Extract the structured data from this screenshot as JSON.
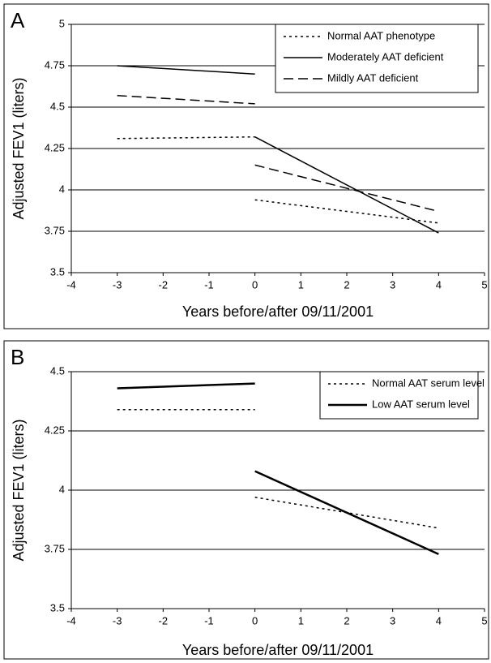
{
  "chart_data": [
    {
      "type": "line",
      "label": "A",
      "xlabel": "Years before/after 09/11/2001",
      "ylabel": "Adjusted FEV1 (liters)",
      "x": [
        -3,
        0,
        null,
        0,
        4
      ],
      "series": [
        {
          "name": "Normal AAT phenotype",
          "color": "#000000",
          "dash": "dotted",
          "width": 1.5,
          "values": [
            4.31,
            4.32,
            null,
            3.94,
            3.8
          ]
        },
        {
          "name": "Moderately AAT deficient",
          "color": "#000000",
          "dash": "solid",
          "width": 1.5,
          "values": [
            4.75,
            4.7,
            null,
            4.32,
            3.74
          ]
        },
        {
          "name": "Mildly AAT deficient",
          "color": "#000000",
          "dash": "dashed",
          "width": 1.5,
          "values": [
            4.57,
            4.52,
            null,
            4.15,
            3.87
          ]
        }
      ],
      "xlim": [
        -4,
        5
      ],
      "xticks": [
        -4,
        -3,
        -2,
        -1,
        0,
        1,
        2,
        3,
        4,
        5
      ],
      "ylim": [
        3.5,
        5
      ],
      "yticks": [
        3.5,
        3.75,
        4,
        4.25,
        4.5,
        4.75,
        5
      ],
      "grid": true,
      "legend": "upper right"
    },
    {
      "type": "line",
      "label": "B",
      "xlabel": "Years before/after 09/11/2001",
      "ylabel": "Adjusted FEV1 (liters)",
      "x": [
        -3,
        0,
        null,
        0,
        4
      ],
      "series": [
        {
          "name": "Normal AAT serum level",
          "color": "#000000",
          "dash": "dotted",
          "width": 1.5,
          "values": [
            4.34,
            4.34,
            null,
            3.97,
            3.84
          ]
        },
        {
          "name": "Low AAT serum level",
          "color": "#000000",
          "dash": "solid",
          "width": 2.5,
          "values": [
            4.43,
            4.45,
            null,
            4.08,
            3.73
          ]
        }
      ],
      "xlim": [
        -4,
        5
      ],
      "xticks": [
        -4,
        -3,
        -2,
        -1,
        0,
        1,
        2,
        3,
        4,
        5
      ],
      "ylim": [
        3.5,
        4.5
      ],
      "yticks": [
        3.5,
        3.75,
        4,
        4.25,
        4.5
      ],
      "grid": true,
      "legend": "upper right"
    }
  ]
}
